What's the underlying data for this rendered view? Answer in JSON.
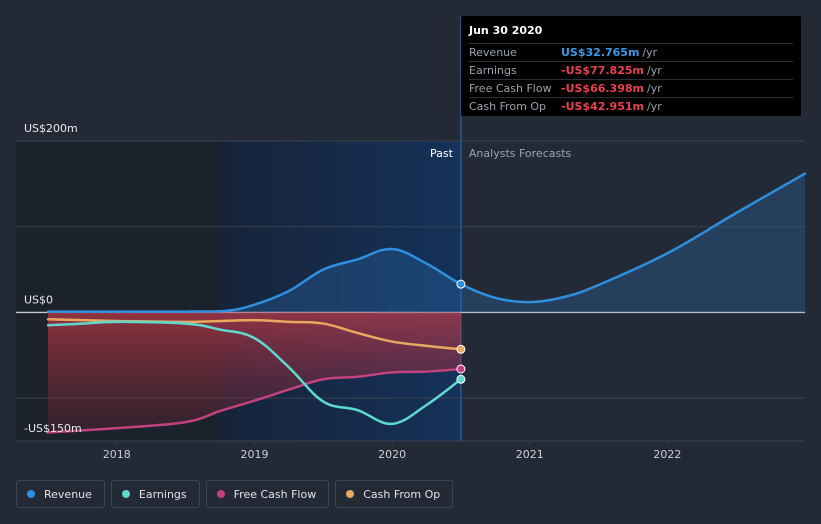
{
  "tooltip": {
    "date": "Jun 30 2020",
    "rows": [
      {
        "name": "Revenue",
        "value": "US$32.765m",
        "unit": "/yr",
        "color": "#3b9ae8"
      },
      {
        "name": "Earnings",
        "value": "-US$77.825m",
        "unit": "/yr",
        "color": "#e8424e"
      },
      {
        "name": "Free Cash Flow",
        "value": "-US$66.398m",
        "unit": "/yr",
        "color": "#e8424e"
      },
      {
        "name": "Cash From Op",
        "value": "-US$42.951m",
        "unit": "/yr",
        "color": "#e8424e"
      }
    ]
  },
  "regions": {
    "past": "Past",
    "forecast": "Analysts Forecasts"
  },
  "legend": [
    {
      "label": "Revenue",
      "color": "#2e8fe0"
    },
    {
      "label": "Earnings",
      "color": "#5fd8cf"
    },
    {
      "label": "Free Cash Flow",
      "color": "#c2417f"
    },
    {
      "label": "Cash From Op",
      "color": "#e8a860"
    }
  ],
  "chart_data": {
    "type": "line",
    "y_unit": "US$m",
    "ylim": [
      -150,
      200
    ],
    "y_tick_labels": [
      {
        "value": 200,
        "label": "US$200m"
      },
      {
        "value": 0,
        "label": "US$0"
      },
      {
        "value": -150,
        "label": "-US$150m"
      }
    ],
    "xlim": [
      2017.5,
      2023.0
    ],
    "x_ticks": [
      2018,
      2019,
      2020,
      2021,
      2022
    ],
    "past_region": [
      2018.75,
      2020.5
    ],
    "past_label_x": 2019.5,
    "highlight_date": 2020.5,
    "series": [
      {
        "name": "Revenue",
        "color": "#2e8fe0",
        "x": [
          2017.5,
          2018.0,
          2018.5,
          2018.8,
          2019.0,
          2019.25,
          2019.5,
          2019.75,
          2020.0,
          2020.25,
          2020.5,
          2020.75,
          2021.0,
          2021.25,
          2021.5,
          2022.0,
          2022.5,
          2023.0
        ],
        "y": [
          1,
          1,
          1,
          2,
          9,
          25,
          50,
          62,
          74,
          57,
          33,
          17,
          12,
          18,
          32,
          69,
          116,
          162
        ]
      },
      {
        "name": "Earnings",
        "color": "#5fd8cf",
        "x": [
          2017.5,
          2017.75,
          2018.0,
          2018.5,
          2018.75,
          2019.0,
          2019.25,
          2019.5,
          2019.75,
          2020.0,
          2020.25,
          2020.5
        ],
        "y": [
          -15,
          -13,
          -11,
          -13,
          -20,
          -30,
          -64,
          -104,
          -114,
          -130,
          -108,
          -78
        ]
      },
      {
        "name": "Free Cash Flow",
        "color": "#c2417f",
        "x": [
          2017.5,
          2018.0,
          2018.5,
          2018.75,
          2019.0,
          2019.25,
          2019.5,
          2019.75,
          2020.0,
          2020.25,
          2020.5
        ],
        "y": [
          -140,
          -135,
          -128,
          -115,
          -103,
          -90,
          -78,
          -75,
          -70,
          -69,
          -66
        ]
      },
      {
        "name": "Cash From Op",
        "color": "#e8a860",
        "x": [
          2017.5,
          2018.0,
          2018.5,
          2018.75,
          2019.0,
          2019.25,
          2019.5,
          2019.75,
          2020.0,
          2020.25,
          2020.5
        ],
        "y": [
          -8,
          -10,
          -11,
          -10,
          -9,
          -11,
          -13,
          -24,
          -34,
          -39,
          -43
        ]
      }
    ]
  }
}
